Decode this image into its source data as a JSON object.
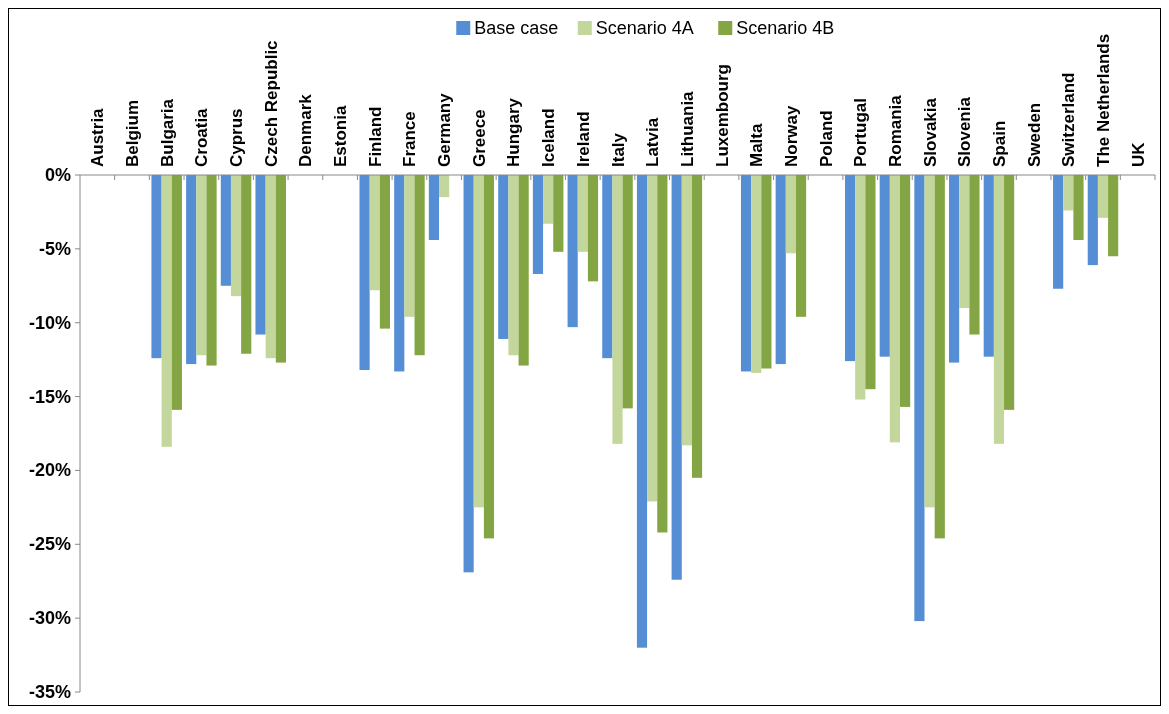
{
  "chart_data": {
    "type": "bar",
    "categories": [
      "Austria",
      "Belgium",
      "Bulgaria",
      "Croatia",
      "Cyprus",
      "Czech Republic",
      "Denmark",
      "Estonia",
      "Finland",
      "France",
      "Germany",
      "Greece",
      "Hungary",
      "Iceland",
      "Ireland",
      "Italy",
      "Latvia",
      "Lithuania",
      "Luxembourg",
      "Malta",
      "Norway",
      "Poland",
      "Portugal",
      "Romania",
      "Slovakia",
      "Slovenia",
      "Spain",
      "Sweden",
      "Switzerland",
      "The Netherlands",
      "UK"
    ],
    "series": [
      {
        "name": "Base case",
        "color": "#558ed5",
        "values": [
          null,
          null,
          -12.4,
          -12.8,
          -7.5,
          -10.8,
          null,
          null,
          -13.2,
          -13.3,
          -4.4,
          -26.9,
          -11.1,
          -6.7,
          -10.3,
          -12.4,
          -32.0,
          -27.4,
          null,
          -13.3,
          -12.8,
          null,
          -12.6,
          -12.3,
          -30.2,
          -12.7,
          -12.3,
          null,
          -7.7,
          -6.1,
          null
        ]
      },
      {
        "name": "Scenario 4A",
        "color": "#c3d69b",
        "values": [
          null,
          null,
          -18.4,
          -12.2,
          -8.2,
          -12.4,
          null,
          null,
          -7.8,
          -9.6,
          -1.5,
          -22.5,
          -12.2,
          -3.3,
          -5.2,
          -18.2,
          -22.1,
          -18.3,
          null,
          -13.4,
          -5.3,
          null,
          -15.2,
          -18.1,
          -22.5,
          -9.0,
          -18.2,
          null,
          -2.4,
          -2.9,
          null
        ]
      },
      {
        "name": "Scenario 4B",
        "color": "#84a543",
        "values": [
          null,
          null,
          -15.9,
          -12.9,
          -12.1,
          -12.7,
          null,
          null,
          -10.4,
          -12.2,
          null,
          -24.6,
          -12.9,
          -5.2,
          -7.2,
          -15.8,
          -24.2,
          -20.5,
          null,
          -13.1,
          -9.6,
          null,
          -14.5,
          -15.7,
          -24.6,
          -10.8,
          -15.9,
          null,
          -4.4,
          -5.5,
          null
        ]
      }
    ],
    "ylim": [
      -35,
      0
    ],
    "yticks": [
      {
        "value": 0,
        "label": "0%"
      },
      {
        "value": -5,
        "label": "-5%"
      },
      {
        "value": -10,
        "label": "-10%"
      },
      {
        "value": -15,
        "label": "-15%"
      },
      {
        "value": -20,
        "label": "-20%"
      },
      {
        "value": -25,
        "label": "-25%"
      },
      {
        "value": -30,
        "label": "-30%"
      },
      {
        "value": -35,
        "label": "-35%"
      }
    ],
    "grid": false,
    "legend": "top"
  }
}
